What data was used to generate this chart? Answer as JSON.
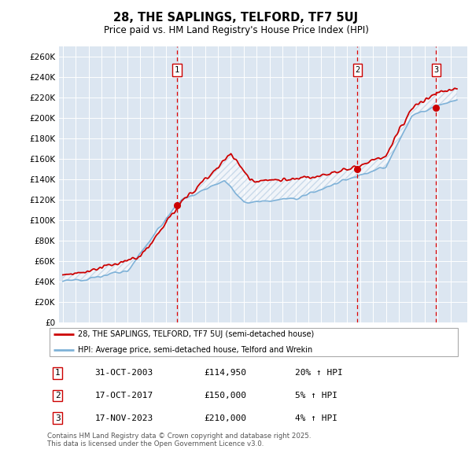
{
  "title": "28, THE SAPLINGS, TELFORD, TF7 5UJ",
  "subtitle": "Price paid vs. HM Land Registry's House Price Index (HPI)",
  "ylim": [
    0,
    270000
  ],
  "yticks": [
    0,
    20000,
    40000,
    60000,
    80000,
    100000,
    120000,
    140000,
    160000,
    180000,
    200000,
    220000,
    240000,
    260000
  ],
  "plot_bg_color": "#dce6f1",
  "legend_label_red": "28, THE SAPLINGS, TELFORD, TF7 5UJ (semi-detached house)",
  "legend_label_blue": "HPI: Average price, semi-detached house, Telford and Wrekin",
  "sale_prices": [
    114950,
    150000,
    210000
  ],
  "sale_year_nums": [
    2003.83,
    2017.79,
    2023.88
  ],
  "sale_labels": [
    "1",
    "2",
    "3"
  ],
  "sale_annotations": [
    {
      "label": "1",
      "date": "31-OCT-2003",
      "price": "£114,950",
      "change": "20% ↑ HPI"
    },
    {
      "label": "2",
      "date": "17-OCT-2017",
      "price": "£150,000",
      "change": "5% ↑ HPI"
    },
    {
      "label": "3",
      "date": "17-NOV-2023",
      "price": "£210,000",
      "change": "4% ↑ HPI"
    }
  ],
  "footer": "Contains HM Land Registry data © Crown copyright and database right 2025.\nThis data is licensed under the Open Government Licence v3.0.",
  "line_color_red": "#cc0000",
  "line_color_blue": "#7fb2d8",
  "xmin": 1994.7,
  "xmax": 2026.3
}
